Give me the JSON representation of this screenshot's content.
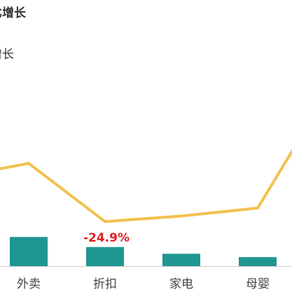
{
  "title": "比增长",
  "subtitle": "增长",
  "chart_data": {
    "type": "bar",
    "categories": [
      "外卖",
      "折扣",
      "家电",
      "母婴"
    ],
    "series": [
      {
        "type": "bar",
        "values": [
          26,
          17,
          11,
          8
        ],
        "color": "#1f9692"
      },
      {
        "type": "line",
        "values": [
          48,
          -24.9,
          -18,
          -8
        ],
        "color": "#f2c14e"
      }
    ],
    "line_offpage": {
      "left": 30,
      "right": 150
    },
    "data_labels": [
      {
        "category": "折扣",
        "text": "-24.9%",
        "color": "#e02020"
      }
    ],
    "ylim_bar": [
      0,
      100
    ],
    "ylim_line": [
      -40,
      150
    ],
    "grid": false,
    "legend": "none"
  }
}
